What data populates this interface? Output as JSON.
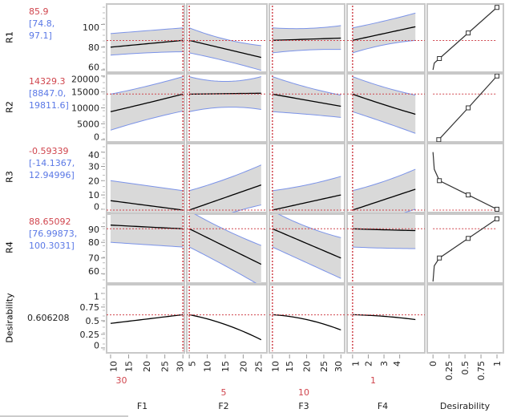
{
  "chart_data": {
    "type": "line",
    "title": "",
    "colors": {
      "prediction": "#000000",
      "band_fill": "#d9d9d9",
      "band_edge": "#7b93e8",
      "current": "#d0454d",
      "frame": "#c8c8c8"
    },
    "factors": [
      {
        "name": "F1",
        "current": 30,
        "current_label": "30",
        "range": [
          8.9,
          30.4
        ],
        "ticks": [
          10,
          15,
          20,
          25,
          30
        ]
      },
      {
        "name": "F2",
        "current": 5,
        "current_label": "5",
        "range": [
          4.3,
          26.6
        ],
        "ticks": [
          5,
          10,
          15,
          20,
          25
        ]
      },
      {
        "name": "F3",
        "current": 10,
        "current_label": "10",
        "range": [
          9.1,
          31.1
        ],
        "ticks": [
          10,
          15,
          20,
          25,
          30
        ]
      },
      {
        "name": "F4",
        "current": 1,
        "current_label": "1",
        "range": [
          0.65,
          5.6
        ],
        "ticks": [
          1,
          2,
          3,
          4
        ]
      }
    ],
    "desirability_axis": {
      "name": "Desirability",
      "range": [
        -0.09,
        1.1
      ],
      "ticks": [
        "0",
        "0.25",
        "0.5",
        "0.75",
        "1"
      ]
    },
    "responses": [
      {
        "name": "R1",
        "value": "85.9",
        "ci_low": "[74.8,",
        "ci_high": "97.1]",
        "current": 85.9,
        "range": [
          58,
          118
        ],
        "ticks": [
          60,
          80,
          100
        ],
        "curves": [
          {
            "x": [
              10,
              20,
              30
            ],
            "pred": [
              80,
              83,
              86
            ],
            "lower": [
              73,
              75,
              76
            ],
            "upper": [
              92,
              94.5,
              97
            ]
          },
          {
            "x": [
              5,
              15,
              25
            ],
            "pred": [
              86,
              78.5,
              71
            ],
            "lower": [
              75,
              68,
              59.6
            ],
            "upper": [
              97,
              87,
              81.4
            ]
          },
          {
            "x": [
              10,
              20,
              30
            ],
            "pred": [
              86,
              87,
              88
            ],
            "lower": [
              75,
              77.5,
              78
            ],
            "upper": [
              97,
              96.5,
              99
            ]
          },
          {
            "x": [
              1,
              3,
              5
            ],
            "pred": [
              86,
              92,
              98
            ],
            "lower": [
              75,
              82,
              86
            ],
            "upper": [
              97,
              103,
              110
            ]
          }
        ],
        "desirability": {
          "d": [
            0,
            0.02,
            0.1,
            0.55,
            1
          ],
          "y": [
            60,
            66,
            70,
            92.5,
            115
          ],
          "markers": [
            0.1,
            0.55,
            1
          ]
        }
      },
      {
        "name": "R2",
        "value": "14329.3",
        "ci_low": "[8847.0,",
        "ci_high": "19811.6]",
        "current": 14329.3,
        "range": [
          -700,
          20700
        ],
        "ticks": [
          0,
          5000,
          10000,
          15000,
          20000
        ],
        "curves": [
          {
            "x": [
              10,
              20,
              30
            ],
            "pred": [
              8800,
              11500,
              14300
            ],
            "lower": [
              3000,
              6300,
              9000
            ],
            "upper": [
              14300,
              16800,
              19800
            ]
          },
          {
            "x": [
              5,
              15,
              25
            ],
            "pred": [
              14300,
              14450,
              14600
            ],
            "lower": [
              8800,
              10200,
              9500
            ],
            "upper": [
              19800,
              18300,
              19800
            ]
          },
          {
            "x": [
              10,
              20,
              30
            ],
            "pred": [
              14300,
              12400,
              10500
            ],
            "lower": [
              8800,
              8000,
              7000
            ],
            "upper": [
              19800,
              16500,
              14000
            ]
          },
          {
            "x": [
              1,
              3,
              5
            ],
            "pred": [
              14300,
              11000,
              8000
            ],
            "lower": [
              8800,
              5500,
              2000
            ],
            "upper": [
              19800,
              16500,
              14000
            ]
          }
        ],
        "desirability": {
          "d": [
            0.09,
            0.55,
            1
          ],
          "y": [
            0,
            10000,
            20000
          ],
          "markers": [
            0.09,
            0.55,
            1
          ]
        }
      },
      {
        "name": "R3",
        "value": "-0.59339",
        "ci_low": "[-14.1367,",
        "ci_high": "12.94996]",
        "current": -0.59339,
        "range": [
          -2.3,
          46
        ],
        "ticks": [
          0,
          10,
          20,
          30,
          40
        ],
        "curves": [
          {
            "x": [
              10,
              20,
              30
            ],
            "pred": [
              6,
              2.7,
              -0.6
            ],
            "lower": [
              -8,
              -11,
              -14
            ],
            "upper": [
              20,
              16.5,
              13
            ]
          },
          {
            "x": [
              5,
              15,
              25
            ],
            "pred": [
              -0.6,
              8.2,
              17
            ],
            "lower": [
              -14,
              -4,
              3
            ],
            "upper": [
              13,
              21,
              31
            ]
          },
          {
            "x": [
              10,
              20,
              30
            ],
            "pred": [
              -0.6,
              4.7,
              10
            ],
            "lower": [
              -14,
              -8,
              -3
            ],
            "upper": [
              13,
              17,
              23
            ]
          },
          {
            "x": [
              1,
              3,
              5
            ],
            "pred": [
              -0.6,
              6.7,
              14
            ],
            "lower": [
              -14,
              -7,
              0
            ],
            "upper": [
              13,
              19.5,
              28
            ]
          }
        ],
        "desirability": {
          "d": [
            0,
            0.02,
            0.1,
            0.55,
            1
          ],
          "y": [
            40,
            28,
            20,
            10,
            0
          ],
          "markers": [
            0.1,
            0.55,
            1
          ]
        }
      },
      {
        "name": "R4",
        "value": "88.65092",
        "ci_low": "[76.99873,",
        "ci_high": "100.3031]",
        "current": 88.65092,
        "range": [
          54,
          98
        ],
        "ticks": [
          60,
          70,
          80,
          90
        ],
        "curves": [
          {
            "x": [
              10,
              20,
              30
            ],
            "pred": [
              91,
              89.8,
              88.65
            ],
            "lower": [
              80,
              78.5,
              77
            ],
            "upper": [
              101,
              100.5,
              100
            ]
          },
          {
            "x": [
              5,
              15,
              25
            ],
            "pred": [
              88.65,
              77.3,
              66
            ],
            "lower": [
              77,
              65,
              52
            ],
            "upper": [
              100,
              88,
              78
            ]
          },
          {
            "x": [
              10,
              20,
              30
            ],
            "pred": [
              88.65,
              79.3,
              70
            ],
            "lower": [
              77,
              67,
              57
            ],
            "upper": [
              100,
              90,
              83
            ]
          },
          {
            "x": [
              1,
              3,
              5
            ],
            "pred": [
              88.65,
              88,
              87.5
            ],
            "lower": [
              77,
              76.3,
              76
            ],
            "upper": [
              100,
              99.5,
              99
            ]
          }
        ],
        "desirability": {
          "d": [
            0,
            0.02,
            0.1,
            0.55,
            1
          ],
          "y": [
            55,
            65,
            70,
            82.5,
            95
          ],
          "markers": [
            0.1,
            0.55,
            1
          ]
        }
      }
    ],
    "overall": {
      "name": "Desirability",
      "value": "0.606208",
      "current": 0.606208,
      "range": [
        -0.09,
        1.16
      ],
      "ticks": [
        "0",
        "0.25",
        "0.5",
        "0.75",
        "1"
      ],
      "curves": [
        {
          "x": [
            10,
            20,
            30
          ],
          "pred": [
            0.45,
            0.53,
            0.61
          ]
        },
        {
          "x": [
            5,
            15,
            25
          ],
          "pred": [
            0.61,
            0.43,
            0.15
          ]
        },
        {
          "x": [
            10,
            20,
            30
          ],
          "pred": [
            0.61,
            0.52,
            0.33
          ]
        },
        {
          "x": [
            1,
            3,
            5
          ],
          "pred": [
            0.61,
            0.58,
            0.52
          ]
        }
      ]
    }
  }
}
